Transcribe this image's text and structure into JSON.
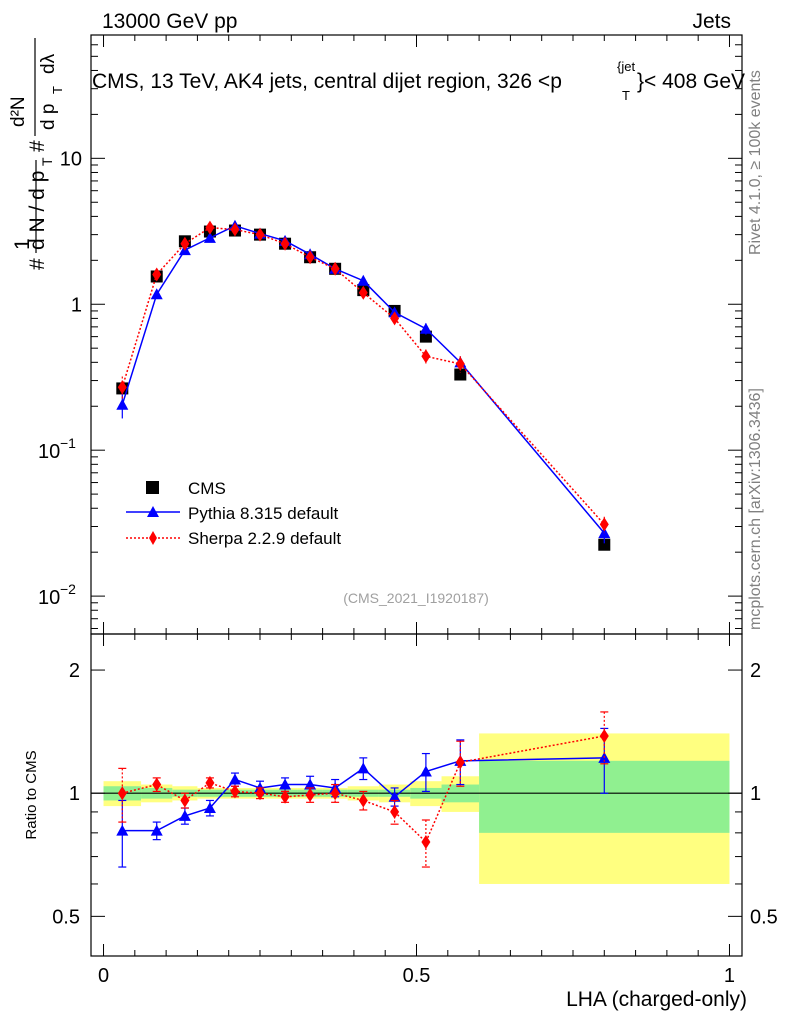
{
  "header": {
    "left": "13000 GeV pp",
    "right": "Jets"
  },
  "plot_title": "CMS, 13 TeV, AK4 jets, central dijet region, 326 <p",
  "plot_title_sup": "{jet",
  "plot_title_sub": "T",
  "plot_title_tail": "}< 408 GeV",
  "side": {
    "rivet": "Rivet 4.1.0, ≥ 100k events",
    "mcplots": "mcplots.cern.ch [arXiv:1306.3436]"
  },
  "analysis_id": "(CMS_2021_I1920187)",
  "upper_ylabel": {
    "hash1": "#",
    "one": "1",
    "dN": "d N / d p",
    "sub1": "T",
    "hash2": "#",
    "d2N": "d²N",
    "dpt": "d p",
    "sub2": "T",
    "dlambda": "dλ"
  },
  "lower_ylabel": "Ratio to CMS",
  "xlabel": "LHA (charged-only)",
  "x_ticks": [
    "0",
    "0.5",
    "1"
  ],
  "upper_y_ticks": [
    "10",
    "1"
  ],
  "upper_y_ticks_exp": [
    {
      "base": "10",
      "exp": "−1",
      "v": 0.1
    },
    {
      "base": "10",
      "exp": "−2",
      "v": 0.01
    }
  ],
  "lower_y_ticks": [
    "2",
    "1",
    "0.5"
  ],
  "legend": [
    {
      "label": "CMS",
      "color": "#000000",
      "marker": "square"
    },
    {
      "label": "Pythia 8.315 default",
      "color": "#0000ff",
      "marker": "triangle"
    },
    {
      "label": "Sherpa 2.2.9 default",
      "color": "#ff0000",
      "marker": "diamond"
    }
  ],
  "chart_data": {
    "type": "scatter",
    "xlim": [
      -0.02,
      1.02
    ],
    "upper_ylim": [
      0.0055,
      70
    ],
    "upper_yscale": "log",
    "lower_ylim": [
      0.4,
      2.45
    ],
    "lower_yscale": "log",
    "bin_edges": [
      0.0,
      0.06,
      0.11,
      0.15,
      0.19,
      0.23,
      0.27,
      0.31,
      0.35,
      0.39,
      0.44,
      0.49,
      0.54,
      0.6,
      1.0
    ],
    "x": [
      0.03,
      0.085,
      0.13,
      0.17,
      0.21,
      0.25,
      0.29,
      0.33,
      0.37,
      0.415,
      0.465,
      0.515,
      0.57,
      0.8
    ],
    "series": [
      {
        "name": "CMS",
        "color": "#000000",
        "values": [
          0.265,
          1.55,
          2.7,
          3.15,
          3.2,
          3.0,
          2.6,
          2.1,
          1.75,
          1.25,
          0.9,
          0.6,
          0.33,
          0.0225
        ],
        "band_inner": [
          0.04,
          0.03,
          0.02,
          0.02,
          0.02,
          0.02,
          0.02,
          0.02,
          0.02,
          0.02,
          0.02,
          0.03,
          0.05,
          0.2
        ],
        "band_outer": [
          0.07,
          0.05,
          0.04,
          0.03,
          0.03,
          0.03,
          0.03,
          0.03,
          0.03,
          0.04,
          0.05,
          0.07,
          0.1,
          0.4
        ]
      },
      {
        "name": "Pythia 8.315 default",
        "color": "#0000ff",
        "values": [
          0.205,
          1.17,
          2.35,
          2.85,
          3.45,
          3.05,
          2.72,
          2.2,
          1.75,
          1.45,
          0.88,
          0.68,
          0.4,
          0.027
        ],
        "errors": [
          0.04,
          0.08,
          0.1,
          0.1,
          0.12,
          0.12,
          0.12,
          0.12,
          0.1,
          0.1,
          0.05,
          0.06,
          0.04,
          0.004
        ],
        "ratio": [
          0.81,
          0.81,
          0.88,
          0.92,
          1.08,
          1.03,
          1.05,
          1.05,
          1.03,
          1.15,
          0.98,
          1.13,
          1.2,
          1.22
        ],
        "ratio_err": [
          0.15,
          0.04,
          0.04,
          0.04,
          0.04,
          0.04,
          0.04,
          0.05,
          0.05,
          0.07,
          0.05,
          0.12,
          0.15,
          0.22
        ]
      },
      {
        "name": "Sherpa 2.2.9 default",
        "color": "#ff0000",
        "values": [
          0.27,
          1.6,
          2.6,
          3.35,
          3.25,
          3.0,
          2.6,
          2.1,
          1.75,
          1.2,
          0.8,
          0.44,
          0.39,
          0.031
        ],
        "errors": [
          0.05,
          0.1,
          0.1,
          0.1,
          0.1,
          0.1,
          0.1,
          0.1,
          0.1,
          0.1,
          0.06,
          0.05,
          0.05,
          0.004
        ],
        "ratio": [
          1.0,
          1.05,
          0.96,
          1.06,
          1.01,
          1.0,
          0.98,
          0.99,
          1.0,
          0.96,
          0.9,
          0.76,
          1.19,
          1.38
        ],
        "ratio_err": [
          0.15,
          0.04,
          0.04,
          0.03,
          0.03,
          0.03,
          0.03,
          0.04,
          0.05,
          0.05,
          0.06,
          0.1,
          0.15,
          0.2
        ]
      }
    ]
  }
}
